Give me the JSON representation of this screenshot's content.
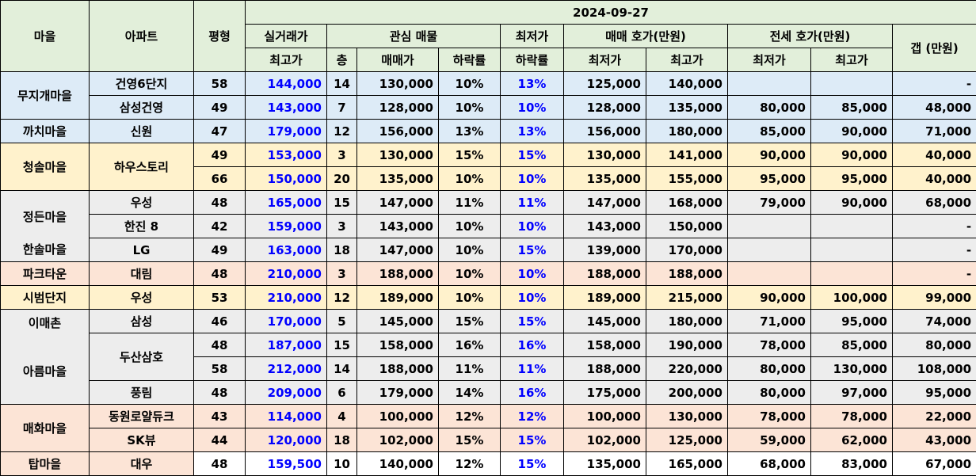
{
  "header": {
    "date": "2024-09-27",
    "village": "마을",
    "apartment": "아파트",
    "size": "평형",
    "actual_top": "실거래가",
    "actual_bottom": "최고가",
    "interest_listing": "관심 매물",
    "floor": "층",
    "sale_price": "매매가",
    "drop_rate": "하락률",
    "lowest_top": "최저가",
    "lowest_bottom": "하락률",
    "sale_ask": "매매 호가(만원)",
    "jeonse_ask": "전세 호가(만원)",
    "min": "최저가",
    "max": "최고가",
    "gap": "갭 (만원)"
  },
  "villages": {
    "v0": "무지개마을",
    "v1": "까치마을",
    "v2": "청솔마을",
    "v3a": "정든마을",
    "v3b": "한솔마을",
    "v4": "파크타운",
    "v5": "시범단지",
    "v6a": "이매촌",
    "v6b": "아름마을",
    "v7": "매화마을",
    "v8": "탑마을"
  },
  "apartments": {
    "a0": "건영6단지",
    "a1": "삼성건영",
    "a2": "신원",
    "a3": "하우스토리",
    "a4": "우성",
    "a5": "한진 8",
    "a6": "LG",
    "a7": "대림",
    "a8": "우성",
    "a9": "삼성",
    "a10": "두산삼호",
    "a11": "풍림",
    "a12": "동원로얄듀크",
    "a13": "SK뷰",
    "a14": "대우"
  },
  "rows": [
    {
      "size": "58",
      "actual": "144,000",
      "floor": "14",
      "sale": "130,000",
      "drop": "10%",
      "lowest_drop": "13%",
      "sale_min": "125,000",
      "sale_max": "140,000",
      "jeonse_min": "",
      "jeonse_max": "",
      "gap": "-"
    },
    {
      "size": "49",
      "actual": "143,000",
      "floor": "7",
      "sale": "128,000",
      "drop": "10%",
      "lowest_drop": "10%",
      "sale_min": "128,000",
      "sale_max": "135,000",
      "jeonse_min": "80,000",
      "jeonse_max": "85,000",
      "gap": "48,000"
    },
    {
      "size": "47",
      "actual": "179,000",
      "floor": "12",
      "sale": "156,000",
      "drop": "13%",
      "lowest_drop": "13%",
      "sale_min": "156,000",
      "sale_max": "180,000",
      "jeonse_min": "85,000",
      "jeonse_max": "90,000",
      "gap": "71,000"
    },
    {
      "size": "49",
      "actual": "153,000",
      "floor": "3",
      "sale": "130,000",
      "drop": "15%",
      "lowest_drop": "15%",
      "sale_min": "130,000",
      "sale_max": "141,000",
      "jeonse_min": "90,000",
      "jeonse_max": "90,000",
      "gap": "40,000"
    },
    {
      "size": "66",
      "actual": "150,000",
      "floor": "20",
      "sale": "135,000",
      "drop": "10%",
      "lowest_drop": "10%",
      "sale_min": "135,000",
      "sale_max": "155,000",
      "jeonse_min": "95,000",
      "jeonse_max": "95,000",
      "gap": "40,000"
    },
    {
      "size": "48",
      "actual": "165,000",
      "floor": "15",
      "sale": "147,000",
      "drop": "11%",
      "lowest_drop": "11%",
      "sale_min": "147,000",
      "sale_max": "168,000",
      "jeonse_min": "79,000",
      "jeonse_max": "90,000",
      "gap": "68,000"
    },
    {
      "size": "42",
      "actual": "159,000",
      "floor": "3",
      "sale": "143,000",
      "drop": "10%",
      "lowest_drop": "10%",
      "sale_min": "143,000",
      "sale_max": "150,000",
      "jeonse_min": "",
      "jeonse_max": "",
      "gap": "-"
    },
    {
      "size": "49",
      "actual": "163,000",
      "floor": "18",
      "sale": "147,000",
      "drop": "10%",
      "lowest_drop": "15%",
      "sale_min": "139,000",
      "sale_max": "170,000",
      "jeonse_min": "",
      "jeonse_max": "",
      "gap": "-"
    },
    {
      "size": "48",
      "actual": "210,000",
      "floor": "3",
      "sale": "188,000",
      "drop": "10%",
      "lowest_drop": "10%",
      "sale_min": "188,000",
      "sale_max": "188,000",
      "jeonse_min": "",
      "jeonse_max": "",
      "gap": "-"
    },
    {
      "size": "53",
      "actual": "210,000",
      "floor": "12",
      "sale": "189,000",
      "drop": "10%",
      "lowest_drop": "10%",
      "sale_min": "189,000",
      "sale_max": "215,000",
      "jeonse_min": "90,000",
      "jeonse_max": "100,000",
      "gap": "99,000"
    },
    {
      "size": "46",
      "actual": "170,000",
      "floor": "5",
      "sale": "145,000",
      "drop": "15%",
      "lowest_drop": "15%",
      "sale_min": "145,000",
      "sale_max": "180,000",
      "jeonse_min": "71,000",
      "jeonse_max": "95,000",
      "gap": "74,000"
    },
    {
      "size": "48",
      "actual": "187,000",
      "floor": "15",
      "sale": "158,000",
      "drop": "16%",
      "lowest_drop": "16%",
      "sale_min": "158,000",
      "sale_max": "190,000",
      "jeonse_min": "78,000",
      "jeonse_max": "85,000",
      "gap": "80,000"
    },
    {
      "size": "58",
      "actual": "212,000",
      "floor": "14",
      "sale": "188,000",
      "drop": "11%",
      "lowest_drop": "11%",
      "sale_min": "188,000",
      "sale_max": "220,000",
      "jeonse_min": "80,000",
      "jeonse_max": "130,000",
      "gap": "108,000"
    },
    {
      "size": "48",
      "actual": "209,000",
      "floor": "6",
      "sale": "179,000",
      "drop": "14%",
      "lowest_drop": "16%",
      "sale_min": "175,000",
      "sale_max": "200,000",
      "jeonse_min": "80,000",
      "jeonse_max": "97,000",
      "gap": "95,000"
    },
    {
      "size": "43",
      "actual": "114,000",
      "floor": "4",
      "sale": "100,000",
      "drop": "12%",
      "lowest_drop": "12%",
      "sale_min": "100,000",
      "sale_max": "130,000",
      "jeonse_min": "78,000",
      "jeonse_max": "78,000",
      "gap": "22,000"
    },
    {
      "size": "44",
      "actual": "120,000",
      "floor": "18",
      "sale": "102,000",
      "drop": "15%",
      "lowest_drop": "15%",
      "sale_min": "102,000",
      "sale_max": "125,000",
      "jeonse_min": "59,000",
      "jeonse_max": "62,000",
      "gap": "43,000"
    },
    {
      "size": "48",
      "actual": "159,500",
      "floor": "10",
      "sale": "140,000",
      "drop": "12%",
      "lowest_drop": "15%",
      "sale_min": "135,000",
      "sale_max": "165,000",
      "jeonse_min": "68,000",
      "jeonse_max": "83,000",
      "gap": "67,000"
    }
  ],
  "colors": {
    "header_bg": "#e2efda",
    "blue_group": "#ddebf7",
    "yellow_group": "#fff2cc",
    "gray_group": "#ededed",
    "pink_group": "#fce4d6",
    "highlight_text": "#0000ff"
  }
}
